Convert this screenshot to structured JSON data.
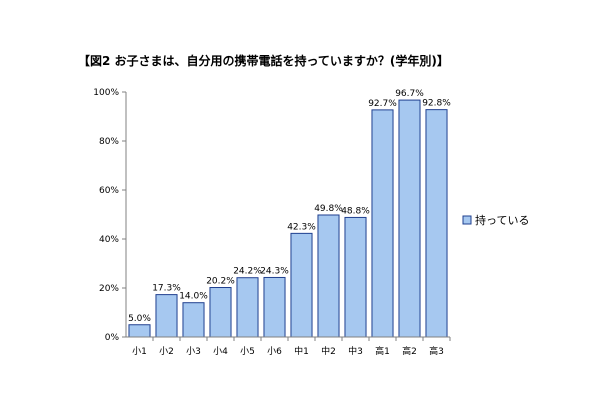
{
  "chart_data": {
    "type": "bar",
    "title": "【図2 お子さまは、自分用の携帯電話を持っていますか？(学年別)】",
    "categories": [
      "小1",
      "小2",
      "小3",
      "小4",
      "小5",
      "小6",
      "中1",
      "中2",
      "中3",
      "高1",
      "高2",
      "高3"
    ],
    "series": [
      {
        "name": "持っている",
        "values": [
          5.0,
          17.3,
          14.0,
          20.2,
          24.2,
          24.3,
          42.3,
          49.8,
          48.8,
          92.7,
          96.7,
          92.8
        ]
      }
    ],
    "data_labels": [
      "5.0%",
      "17.3%",
      "14.0%",
      "20.2%",
      "24.2%",
      "24.3%",
      "42.3%",
      "49.8%",
      "48.8%",
      "92.7%",
      "96.7%",
      "92.8%"
    ],
    "yticks": [
      "0%",
      "20%",
      "40%",
      "60%",
      "80%",
      "100%"
    ],
    "ylim": [
      0,
      100
    ],
    "xlabel": "",
    "ylabel": "",
    "grid": false,
    "legend_position": "right",
    "colors": {
      "bar_fill": "#a6c8f0",
      "bar_stroke": "#1f3f8f",
      "axis": "#808080"
    }
  }
}
